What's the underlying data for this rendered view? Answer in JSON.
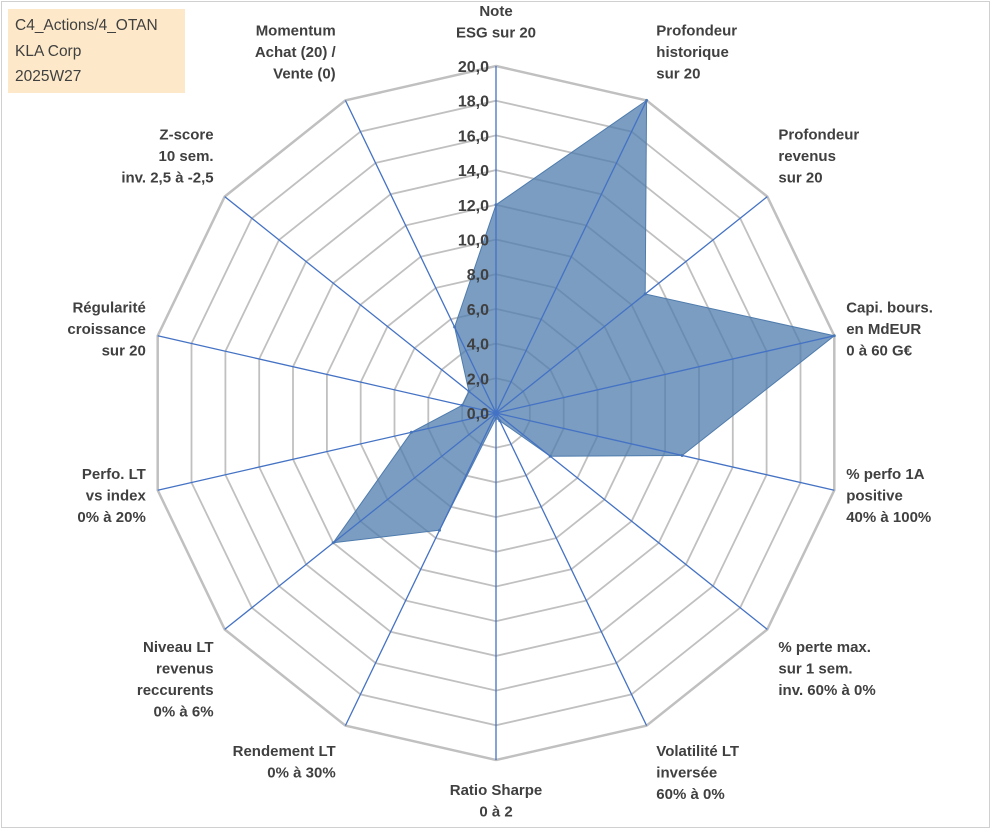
{
  "info_box": {
    "line1": "C4_Actions/4_OTAN",
    "line2": "KLA Corp",
    "line3": "2025W27"
  },
  "chart_data": {
    "type": "radar",
    "title": "",
    "range": [
      0,
      20
    ],
    "tick_step": 2,
    "tick_labels": [
      "0,0",
      "2,0",
      "4,0",
      "6,0",
      "8,0",
      "10,0",
      "12,0",
      "14,0",
      "16,0",
      "18,0",
      "20,0"
    ],
    "grid": true,
    "legend": "none",
    "colors": {
      "fill": "#4f7cad",
      "fill_opacity": 0.75,
      "spokes": "#4472c4",
      "grid": "#c0c0c0",
      "text": "#404040"
    },
    "axes": [
      {
        "label": [
          "Note",
          "ESG sur 20"
        ]
      },
      {
        "label": [
          "Profondeur",
          "historique",
          "sur 20"
        ]
      },
      {
        "label": [
          "Profondeur",
          "revenus",
          "sur 20"
        ]
      },
      {
        "label": [
          "Capi. bours.",
          "en MdEUR",
          "0 à 60 G€"
        ]
      },
      {
        "label": [
          "% perfo 1A",
          "positive",
          "40% à 100%"
        ]
      },
      {
        "label": [
          "% perte max.",
          "sur 1 sem.",
          "inv. 60% à 0%"
        ]
      },
      {
        "label": [
          "Volatilité LT",
          "inversée",
          "60% à 0%"
        ]
      },
      {
        "label": [
          "Ratio Sharpe",
          "0 à 2"
        ]
      },
      {
        "label": [
          "Rendement LT",
          "0% à 30%"
        ]
      },
      {
        "label": [
          "Niveau LT",
          "revenus",
          "reccurents",
          "0% à 6%"
        ]
      },
      {
        "label": [
          "Perfo. LT",
          "vs index",
          "0% à 20%"
        ]
      },
      {
        "label": [
          "Régularité",
          "croissance",
          "sur 20"
        ]
      },
      {
        "label": [
          "Z-score",
          "10 sem.",
          "inv. 2,5 à -2,5"
        ]
      },
      {
        "label": [
          "Momentum",
          "Achat (20) /",
          "Vente (0)"
        ]
      }
    ],
    "series": [
      {
        "values": [
          12.0,
          20.0,
          11.0,
          20.0,
          11.0,
          4.0,
          0.5,
          0.3,
          7.5,
          12.0,
          5.0,
          2.0,
          2.0,
          5.5
        ]
      }
    ]
  }
}
